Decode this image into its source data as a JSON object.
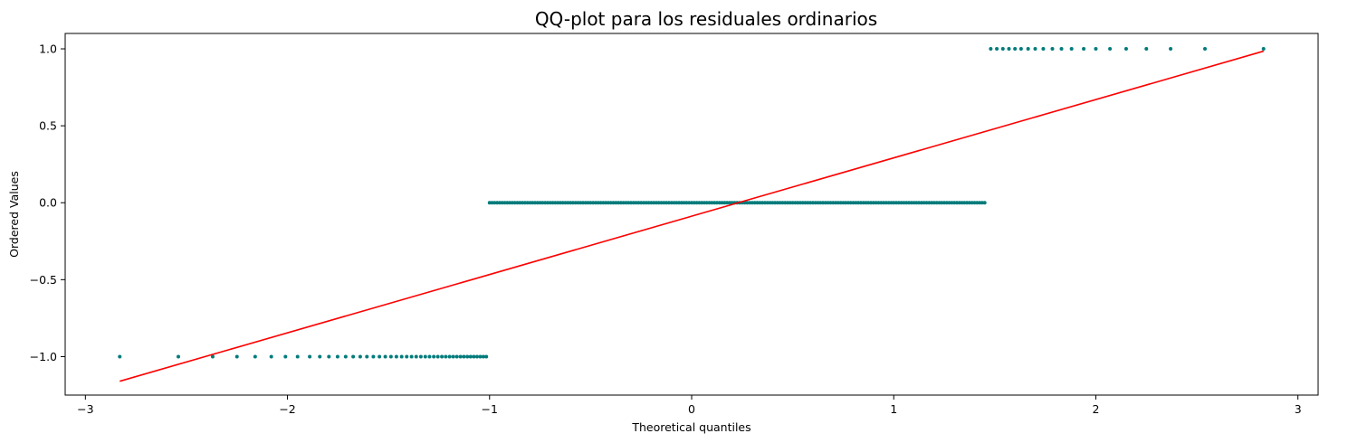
{
  "chart_data": {
    "type": "scatter",
    "title": "QQ-plot para los residuales ordinarios",
    "xlabel": "Theoretical quantiles",
    "ylabel": "Ordered Values",
    "xlim": [
      -3.1,
      3.1
    ],
    "ylim": [
      -1.25,
      1.1
    ],
    "xticks": [
      -3,
      -2,
      -1,
      0,
      1,
      2,
      3
    ],
    "xtick_labels": [
      "−3",
      "−2",
      "−1",
      "0",
      "1",
      "2",
      "3"
    ],
    "yticks": [
      -1.0,
      -0.5,
      0.0,
      0.5,
      1.0
    ],
    "ytick_labels": [
      "−1.0",
      "−0.5",
      "0.0",
      "0.5",
      "1.0"
    ],
    "grid": false,
    "colors": {
      "points": "#007b7b",
      "fit_line": "#ff0000"
    },
    "series": [
      {
        "kind": "points",
        "x": [
          -2.83,
          -2.54,
          -2.37,
          -2.25,
          -2.16,
          -2.08,
          -2.01,
          -1.95,
          -1.89,
          -1.84,
          -1.795,
          -1.752,
          -1.712,
          -1.675,
          -1.64,
          -1.607,
          -1.575,
          -1.545,
          -1.516,
          -1.488,
          -1.461,
          -1.435,
          -1.41,
          -1.386,
          -1.363,
          -1.34,
          -1.318,
          -1.297,
          -1.276,
          -1.256,
          -1.236,
          -1.217,
          -1.198,
          -1.18,
          -1.162,
          -1.144,
          -1.127,
          -1.11,
          -1.094,
          -1.078,
          -1.062,
          -1.046,
          -1.031,
          -1.016
        ],
        "y_constant": -1.0
      },
      {
        "kind": "points",
        "x_range": [
          -1.0,
          1.46
        ],
        "x_step": 0.0125,
        "y_constant": 0.0
      },
      {
        "kind": "points",
        "x": [
          1.48,
          1.51,
          1.54,
          1.57,
          1.6,
          1.63,
          1.665,
          1.7,
          1.74,
          1.785,
          1.83,
          1.88,
          1.94,
          2.0,
          2.07,
          2.15,
          2.25,
          2.37,
          2.54,
          2.83
        ],
        "y_constant": 1.0
      },
      {
        "kind": "line",
        "x": [
          -2.83,
          2.83
        ],
        "y": [
          -1.16,
          0.985
        ]
      }
    ]
  }
}
